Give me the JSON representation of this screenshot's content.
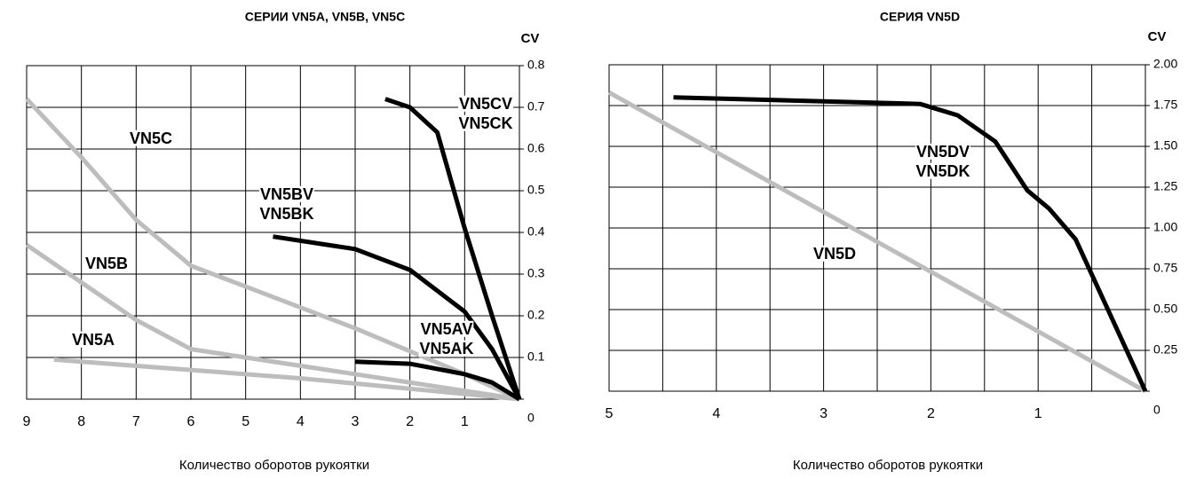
{
  "chart_data": [
    {
      "type": "line",
      "title": "СЕРИИ VN5A, VN5B, VN5C",
      "y_label": "CV",
      "x_label": "Количество оборотов рукоятки",
      "xlim": [
        9,
        0
      ],
      "xticks": [
        9,
        8,
        7,
        6,
        5,
        4,
        3,
        2,
        1
      ],
      "ylim": [
        0,
        0.8
      ],
      "yticks": [
        0,
        0.1,
        0.2,
        0.3,
        0.4,
        0.5,
        0.6,
        0.7,
        0.8
      ],
      "grid": true,
      "series": [
        {
          "labels": [
            "VN5C"
          ],
          "color": "#bdbdbd",
          "x": [
            9,
            8,
            7,
            6,
            5,
            3,
            1,
            0
          ],
          "values": [
            0.72,
            0.58,
            0.43,
            0.32,
            0.27,
            0.17,
            0.06,
            0
          ]
        },
        {
          "labels": [
            "VN5B"
          ],
          "color": "#bdbdbd",
          "x": [
            9,
            8,
            7,
            6,
            5,
            3,
            1,
            0
          ],
          "values": [
            0.37,
            0.28,
            0.19,
            0.12,
            0.1,
            0.06,
            0.02,
            0
          ]
        },
        {
          "labels": [
            "VN5A"
          ],
          "color": "#bdbdbd",
          "x": [
            8.5,
            4,
            0
          ],
          "values": [
            0.095,
            0.05,
            0
          ]
        },
        {
          "labels": [
            "VN5CV",
            "VN5CK"
          ],
          "color": "#000000",
          "x": [
            2.45,
            2,
            1.5,
            1,
            0.5,
            0
          ],
          "values": [
            0.72,
            0.7,
            0.64,
            0.41,
            0.2,
            0
          ]
        },
        {
          "labels": [
            "VN5BV",
            "VN5BK"
          ],
          "color": "#000000",
          "x": [
            4.5,
            3,
            2,
            1,
            0.5,
            0
          ],
          "values": [
            0.39,
            0.36,
            0.31,
            0.21,
            0.12,
            0
          ]
        },
        {
          "labels": [
            "VN5AV",
            "VN5AK"
          ],
          "color": "#000000",
          "x": [
            3,
            2,
            1,
            0.5,
            0
          ],
          "values": [
            0.09,
            0.085,
            0.06,
            0.04,
            0
          ]
        }
      ]
    },
    {
      "type": "line",
      "title": "СЕРИЯ VN5D",
      "y_label": "CV",
      "x_label": "Количество оборотов рукоятки",
      "xlim": [
        5,
        0
      ],
      "xticks": [
        5,
        4,
        3,
        2,
        1
      ],
      "xgrid": [
        4.5,
        4,
        3.5,
        3,
        2.5,
        2,
        1.5,
        1,
        0.5
      ],
      "ylim": [
        0,
        2
      ],
      "yticks": [
        0,
        0.25,
        {
          "value": 0.5,
          "label": "0.50"
        },
        0.75,
        {
          "value": 1,
          "label": "1.00"
        },
        1.25,
        {
          "value": 1.5,
          "label": "1.50"
        },
        1.75,
        {
          "value": 2,
          "label": "2.00"
        }
      ],
      "grid": true,
      "series": [
        {
          "labels": [
            "VN5D"
          ],
          "color": "#bdbdbd",
          "x": [
            5,
            0
          ],
          "values": [
            1.83,
            0
          ]
        },
        {
          "labels": [
            "VN5DV",
            "VN5DK"
          ],
          "color": "#000000",
          "x": [
            4.4,
            2.1,
            1.75,
            1.4,
            1.1,
            0.9,
            0.65,
            0
          ],
          "values": [
            1.8,
            1.76,
            1.69,
            1.53,
            1.23,
            1.12,
            0.93,
            0
          ]
        }
      ]
    }
  ]
}
